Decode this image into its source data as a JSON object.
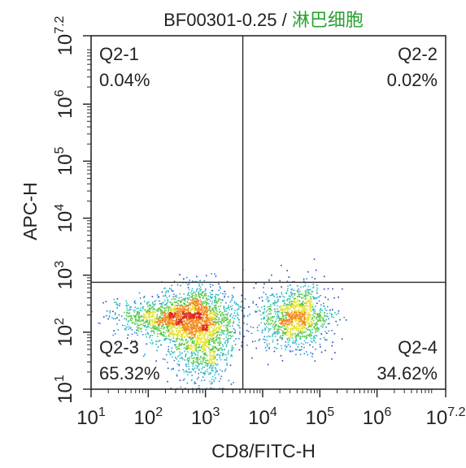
{
  "chart_data": {
    "type": "scatter",
    "title_prefix": "BF00301-0.25 / ",
    "title_population": "淋巴细胞",
    "xlabel": "CD8/FITC-H",
    "ylabel": "APC-H",
    "x_scale": "log",
    "y_scale": "log",
    "xlim": [
      10,
      15848932
    ],
    "ylim": [
      10,
      15848932
    ],
    "x_ticks": [
      {
        "base": "10",
        "exp": "1"
      },
      {
        "base": "10",
        "exp": "2"
      },
      {
        "base": "10",
        "exp": "3"
      },
      {
        "base": "10",
        "exp": "4"
      },
      {
        "base": "10",
        "exp": "5"
      },
      {
        "base": "10",
        "exp": "6"
      },
      {
        "base": "10",
        "exp": "7.2"
      }
    ],
    "y_ticks": [
      {
        "base": "10",
        "exp": "1"
      },
      {
        "base": "10",
        "exp": "2"
      },
      {
        "base": "10",
        "exp": "3"
      },
      {
        "base": "10",
        "exp": "4"
      },
      {
        "base": "10",
        "exp": "5"
      },
      {
        "base": "10",
        "exp": "6"
      },
      {
        "base": "10",
        "exp": "7.2"
      }
    ],
    "gate": {
      "x": 4500,
      "y": 750
    },
    "quadrants": [
      {
        "name": "Q2-1",
        "value": "0.04%"
      },
      {
        "name": "Q2-2",
        "value": "0.02%"
      },
      {
        "name": "Q2-3",
        "value": "65.32%"
      },
      {
        "name": "Q2-4",
        "value": "34.62%"
      }
    ],
    "clusters": [
      {
        "x": 700,
        "y": 160,
        "count": 1700,
        "sx": 0.36,
        "sy": 0.28
      },
      {
        "x": 150,
        "y": 180,
        "count": 700,
        "sx": 0.42,
        "sy": 0.16
      },
      {
        "x": 900,
        "y": 40,
        "count": 450,
        "sx": 0.28,
        "sy": 0.3
      },
      {
        "x": 38000,
        "y": 180,
        "count": 1200,
        "sx": 0.3,
        "sy": 0.27
      }
    ],
    "grid": false,
    "legend": "none",
    "density_colors": [
      "#1f3fb8",
      "#2e84d6",
      "#2fbfc1",
      "#58c948",
      "#e8e22a",
      "#f38a1f",
      "#dc2d1f"
    ]
  }
}
